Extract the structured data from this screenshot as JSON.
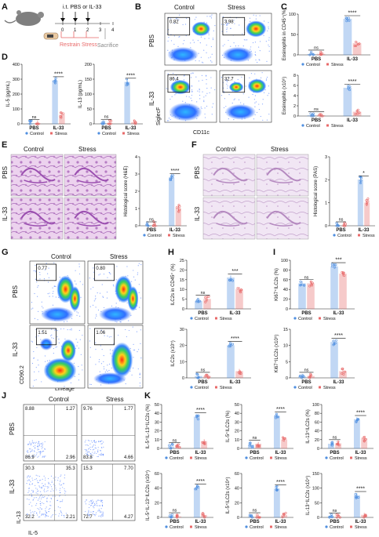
{
  "panel_letters": [
    "A",
    "B",
    "C",
    "D",
    "E",
    "F",
    "G",
    "H",
    "I",
    "J",
    "K"
  ],
  "panelA": {
    "treatment": "i.t. PBS or IL-33",
    "stress": "Restrain Stress",
    "sacrifice": "Sacrifice",
    "days": [
      "0",
      "1",
      "2",
      "3",
      "4"
    ]
  },
  "panelB": {
    "cols": [
      "Control",
      "Stress"
    ],
    "rows": [
      "PBS",
      "IL-33"
    ],
    "xlabel": "CD11c",
    "ylabel": "SiglecF",
    "gates": [
      "0.82",
      "3.98",
      "86.4",
      "32.7"
    ]
  },
  "panelE": {
    "cols": [
      "Control",
      "Stress"
    ],
    "rows": [
      "PBS",
      "IL-33"
    ]
  },
  "panelF": {
    "cols": [
      "Control",
      "Stress"
    ],
    "rows": [
      "PBS",
      "IL-33"
    ]
  },
  "panelG": {
    "cols": [
      "Control",
      "Stress"
    ],
    "rows": [
      "PBS",
      "IL-33"
    ],
    "xlabel": "Lineage",
    "ylabel": "CD90.2",
    "gates": [
      "0.77",
      "0.80",
      "1.51",
      "1.06"
    ]
  },
  "panelJ": {
    "cols": [
      "Control",
      "Stress"
    ],
    "rows": [
      "PBS",
      "IL-33"
    ],
    "xlabel": "IL-5",
    "ylabel": "IL-13",
    "quadrants": [
      [
        "8.88",
        "1.27",
        "86.9",
        "2.96"
      ],
      [
        "9.76",
        "1.77",
        "83.8",
        "4.66"
      ],
      [
        "30.3",
        "35.3",
        "32.2",
        "2.21"
      ],
      [
        "15.3",
        "7.70",
        "72.7",
        "4.27"
      ]
    ]
  },
  "legend": {
    "control": "Control",
    "stress": "Stress"
  },
  "groups": [
    "PBS",
    "IL-33"
  ],
  "sig_ns": "ns",
  "chart_data": [
    {
      "id": "C1",
      "type": "bar",
      "ylabel": "Eosinophils in CD45⁺(%)",
      "ylim": [
        0,
        100
      ],
      "ticks": [
        0,
        50,
        100
      ],
      "categories": [
        "PBS",
        "IL-33"
      ],
      "series": [
        {
          "name": "Control",
          "values": [
            1.5,
            88
          ]
        },
        {
          "name": "Stress",
          "values": [
            2,
            28
          ]
        }
      ],
      "sig": [
        "ns",
        "****"
      ]
    },
    {
      "id": "C2",
      "type": "bar",
      "ylabel": "Eosinophils (x10⁶)",
      "ylim": [
        0,
        8
      ],
      "ticks": [
        0,
        2,
        4,
        6,
        8
      ],
      "categories": [
        "PBS",
        "IL-33"
      ],
      "series": [
        {
          "name": "Control",
          "values": [
            0.1,
            5.5
          ]
        },
        {
          "name": "Stress",
          "values": [
            0.1,
            0.8
          ]
        }
      ],
      "sig": [
        "ns",
        "****"
      ]
    },
    {
      "id": "D1",
      "type": "bar",
      "ylabel": "IL-5 (pg/mL)",
      "ylim": [
        0,
        400
      ],
      "ticks": [
        0,
        100,
        200,
        300,
        400
      ],
      "categories": [
        "PBS",
        "IL-33"
      ],
      "series": [
        {
          "name": "Control",
          "values": [
            3,
            290
          ]
        },
        {
          "name": "Stress",
          "values": [
            3,
            60
          ]
        }
      ],
      "sig": [
        "ns",
        "****"
      ]
    },
    {
      "id": "D2",
      "type": "bar",
      "ylabel": "IL-13 (pg/mL)",
      "ylim": [
        0,
        200
      ],
      "ticks": [
        0,
        50,
        100,
        150,
        200
      ],
      "categories": [
        "PBS",
        "IL-33"
      ],
      "series": [
        {
          "name": "Control",
          "values": [
            2,
            140
          ]
        },
        {
          "name": "Stress",
          "values": [
            2,
            5
          ]
        }
      ],
      "sig": [
        "ns",
        "****"
      ]
    },
    {
      "id": "E",
      "type": "bar",
      "ylabel": "Histological score (H&E)",
      "ylim": [
        0,
        4
      ],
      "ticks": [
        0,
        1,
        2,
        3,
        4
      ],
      "categories": [
        "PBS",
        "IL-33"
      ],
      "series": [
        {
          "name": "Control",
          "values": [
            0,
            2.8
          ]
        },
        {
          "name": "Stress",
          "values": [
            0,
            1
          ]
        }
      ],
      "sig": [
        "ns",
        "****"
      ]
    },
    {
      "id": "F",
      "type": "bar",
      "ylabel": "Histological score (PAS)",
      "ylim": [
        0,
        3
      ],
      "ticks": [
        0,
        1,
        2,
        3
      ],
      "categories": [
        "PBS",
        "IL-33"
      ],
      "series": [
        {
          "name": "Control",
          "values": [
            0,
            2
          ]
        },
        {
          "name": "Stress",
          "values": [
            0,
            1
          ]
        }
      ],
      "sig": [
        "ns",
        "*"
      ]
    },
    {
      "id": "H1",
      "type": "bar",
      "ylabel": "ILC2s in CD45⁺ (%)",
      "ylim": [
        0,
        25
      ],
      "ticks": [
        0,
        5,
        10,
        15,
        20,
        25
      ],
      "categories": [
        "PBS",
        "IL-33"
      ],
      "series": [
        {
          "name": "Control",
          "values": [
            4,
            16
          ]
        },
        {
          "name": "Stress",
          "values": [
            5,
            10
          ]
        }
      ],
      "sig": [
        "ns",
        "***"
      ]
    },
    {
      "id": "H2",
      "type": "bar",
      "ylabel": "ILC2s (x10⁵)",
      "ylim": [
        0,
        30
      ],
      "ticks": [
        0,
        10,
        20,
        30
      ],
      "categories": [
        "PBS",
        "IL-33"
      ],
      "series": [
        {
          "name": "Control",
          "values": [
            1,
            20
          ]
        },
        {
          "name": "Stress",
          "values": [
            1,
            4
          ]
        }
      ],
      "sig": [
        "ns",
        "****"
      ]
    },
    {
      "id": "I1",
      "type": "bar",
      "ylabel": "Ki67⁺ILC2s (%)",
      "ylim": [
        0,
        100
      ],
      "ticks": [
        0,
        20,
        40,
        60,
        80,
        100
      ],
      "categories": [
        "PBS",
        "IL-33"
      ],
      "series": [
        {
          "name": "Control",
          "values": [
            52,
            87
          ]
        },
        {
          "name": "Stress",
          "values": [
            52,
            72
          ]
        }
      ],
      "sig": [
        "ns",
        "***"
      ]
    },
    {
      "id": "I2",
      "type": "bar",
      "ylabel": "Ki67⁺ILC2s (x10⁵)",
      "ylim": [
        0,
        15
      ],
      "ticks": [
        0,
        5,
        10,
        15
      ],
      "categories": [
        "PBS",
        "IL-33"
      ],
      "series": [
        {
          "name": "Control",
          "values": [
            0.5,
            11
          ]
        },
        {
          "name": "Stress",
          "values": [
            0.5,
            2
          ]
        }
      ],
      "sig": [
        "ns",
        "****"
      ]
    },
    {
      "id": "K1",
      "type": "bar",
      "ylabel": "IL-5⁺IL-13⁺ILC2s (%)",
      "ylim": [
        0,
        50
      ],
      "ticks": [
        0,
        10,
        20,
        30,
        40,
        50
      ],
      "categories": [
        "PBS",
        "IL-33"
      ],
      "series": [
        {
          "name": "Control",
          "values": [
            2,
            36
          ]
        },
        {
          "name": "Stress",
          "values": [
            2,
            8
          ]
        }
      ],
      "sig": [
        "ns",
        "****"
      ]
    },
    {
      "id": "K2",
      "type": "bar",
      "ylabel": "IL-5⁺ILC2s (%)",
      "ylim": [
        0,
        50
      ],
      "ticks": [
        0,
        10,
        20,
        30,
        40,
        50
      ],
      "categories": [
        "PBS",
        "IL-33"
      ],
      "series": [
        {
          "name": "Control",
          "values": [
            4,
            37
          ]
        },
        {
          "name": "Stress",
          "values": [
            5,
            10
          ]
        }
      ],
      "sig": [
        "ns",
        "****"
      ]
    },
    {
      "id": "K3",
      "type": "bar",
      "ylabel": "IL-13⁺ILC2s (%)",
      "ylim": [
        0,
        100
      ],
      "ticks": [
        0,
        20,
        40,
        60,
        80,
        100
      ],
      "categories": [
        "PBS",
        "IL-33"
      ],
      "series": [
        {
          "name": "Control",
          "values": [
            10,
            66
          ]
        },
        {
          "name": "Stress",
          "values": [
            11,
            22
          ]
        }
      ],
      "sig": [
        "ns",
        "****"
      ]
    },
    {
      "id": "K4",
      "type": "bar",
      "ylabel": "IL-5⁺IL-13⁺ILC2s (x10⁴)",
      "ylim": [
        0,
        60
      ],
      "ticks": [
        0,
        20,
        40,
        60
      ],
      "categories": [
        "PBS",
        "IL-33"
      ],
      "series": [
        {
          "name": "Control",
          "values": [
            1,
            40
          ]
        },
        {
          "name": "Stress",
          "values": [
            1,
            3
          ]
        }
      ],
      "sig": [
        "ns",
        "****"
      ]
    },
    {
      "id": "K5",
      "type": "bar",
      "ylabel": "IL-5⁺ILC2s (x10⁴)",
      "ylim": [
        0,
        60
      ],
      "ticks": [
        0,
        20,
        40,
        60
      ],
      "categories": [
        "PBS",
        "IL-33"
      ],
      "series": [
        {
          "name": "Control",
          "values": [
            1,
            39
          ]
        },
        {
          "name": "Stress",
          "values": [
            1,
            3
          ]
        }
      ],
      "sig": [
        "ns",
        "****"
      ]
    },
    {
      "id": "K6",
      "type": "bar",
      "ylabel": "IL-13⁺ILC2s (x10⁴)",
      "ylim": [
        0,
        150
      ],
      "ticks": [
        0,
        50,
        100,
        150
      ],
      "categories": [
        "PBS",
        "IL-33"
      ],
      "series": [
        {
          "name": "Control",
          "values": [
            2,
            75
          ]
        },
        {
          "name": "Stress",
          "values": [
            2,
            8
          ]
        }
      ],
      "sig": [
        "ns",
        "****"
      ]
    }
  ],
  "colors": {
    "control": "#4f8fe0",
    "stress": "#e86a6a",
    "he": "#c98fd0",
    "pas": "#e8d4ee",
    "flow_hot": "#ff3a1a",
    "flow_mid": "#3a8cff"
  }
}
